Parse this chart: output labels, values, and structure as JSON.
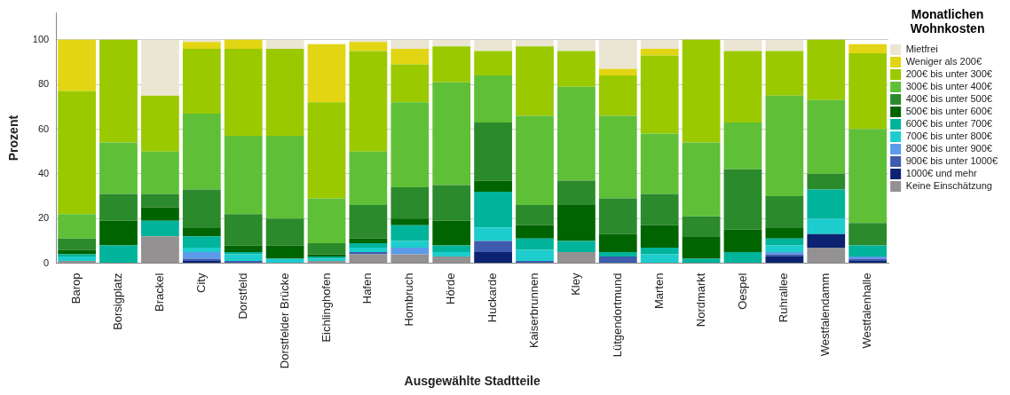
{
  "chart_data": {
    "type": "bar",
    "stacked": true,
    "xlabel": "Ausgewählte Stadtteile",
    "ylabel": "Prozent",
    "legend_title": "Monatlichen Wohnkosten",
    "legend": "right",
    "grid": "y",
    "categories": [
      "Barop",
      "Borsigplatz",
      "Brackel",
      "City",
      "Dorstfeld",
      "Dorstfelder Brücke",
      "Eichlinghofen",
      "Hafen",
      "Hombruch",
      "Hörde",
      "Huckarde",
      "Kaiserbrunnen",
      "Kley",
      "Lütgendortmund",
      "Marten",
      "Nordmarkt",
      "Oespel",
      "Ruhrallee",
      "Westfalendamm",
      "Westfalenhalle"
    ],
    "ylim": [
      0,
      112
    ],
    "yticks": [
      0,
      20,
      40,
      60,
      80,
      100
    ],
    "series": [
      {
        "name": "Keine Einschätzung",
        "color": "#939191",
        "values": [
          1,
          0,
          12,
          0,
          0,
          0,
          1,
          4,
          4,
          3,
          0,
          0,
          5,
          0,
          0,
          0,
          0,
          0,
          7,
          0
        ]
      },
      {
        "name": "1000€ und mehr",
        "color": "#0b2371",
        "values": [
          0,
          0,
          0,
          1,
          0,
          0,
          0,
          0,
          0,
          0,
          5,
          0,
          0,
          0,
          0,
          0,
          0,
          3,
          6,
          1
        ]
      },
      {
        "name": "900€ bis unter 1000€",
        "color": "#3e5bad",
        "values": [
          0,
          0,
          0,
          1,
          1,
          0,
          0,
          1,
          0,
          0,
          5,
          1,
          0,
          3,
          0,
          0,
          0,
          1,
          0,
          1
        ]
      },
      {
        "name": "800€ bis unter 900€",
        "color": "#5b9bea",
        "values": [
          0,
          0,
          0,
          3,
          0,
          0,
          0,
          0,
          3,
          0,
          0,
          0,
          0,
          0,
          0,
          0,
          0,
          1,
          0,
          1
        ]
      },
      {
        "name": "700€ bis unter 800€",
        "color": "#1dcccc",
        "values": [
          2,
          0,
          0,
          2,
          3,
          2,
          1,
          2,
          3,
          2,
          6,
          5,
          0,
          0,
          4,
          0,
          0,
          3,
          7,
          0
        ]
      },
      {
        "name": "600€ bis unter 700€",
        "color": "#00b39b",
        "values": [
          1,
          8,
          7,
          5,
          1,
          0,
          1,
          2,
          7,
          3,
          16,
          5,
          5,
          2,
          3,
          2,
          5,
          3,
          13,
          5
        ]
      },
      {
        "name": "500€ bis unter 600€",
        "color": "#006400",
        "values": [
          2,
          11,
          6,
          4,
          3,
          6,
          1,
          2,
          3,
          11,
          5,
          6,
          16,
          8,
          10,
          10,
          10,
          5,
          0,
          0
        ]
      },
      {
        "name": "400€ bis unter 500€",
        "color": "#2b8a2b",
        "values": [
          5,
          12,
          6,
          17,
          14,
          12,
          5,
          15,
          14,
          16,
          26,
          9,
          11,
          16,
          14,
          9,
          27,
          14,
          7,
          10
        ]
      },
      {
        "name": "300€ bis unter 400€",
        "color": "#5fc038",
        "values": [
          11,
          23,
          19,
          34,
          35,
          37,
          20,
          24,
          38,
          46,
          21,
          40,
          42,
          37,
          27,
          33,
          21,
          45,
          33,
          42
        ]
      },
      {
        "name": "200€ bis unter 300€",
        "color": "#9bc900",
        "values": [
          55,
          46,
          25,
          29,
          39,
          39,
          43,
          45,
          17,
          16,
          11,
          31,
          16,
          18,
          35,
          46,
          32,
          20,
          27,
          34
        ]
      },
      {
        "name": "Weniger als 200€",
        "color": "#e2d513",
        "values": [
          23,
          0,
          0,
          3,
          4,
          0,
          26,
          4,
          7,
          0,
          0,
          0,
          0,
          3,
          3,
          0,
          0,
          0,
          0,
          4
        ]
      },
      {
        "name": "Mietfrei",
        "color": "#ebe5d3",
        "values": [
          0,
          0,
          25,
          1,
          0,
          4,
          0,
          1,
          4,
          3,
          5,
          3,
          5,
          13,
          4,
          0,
          5,
          5,
          0,
          0
        ]
      }
    ]
  }
}
